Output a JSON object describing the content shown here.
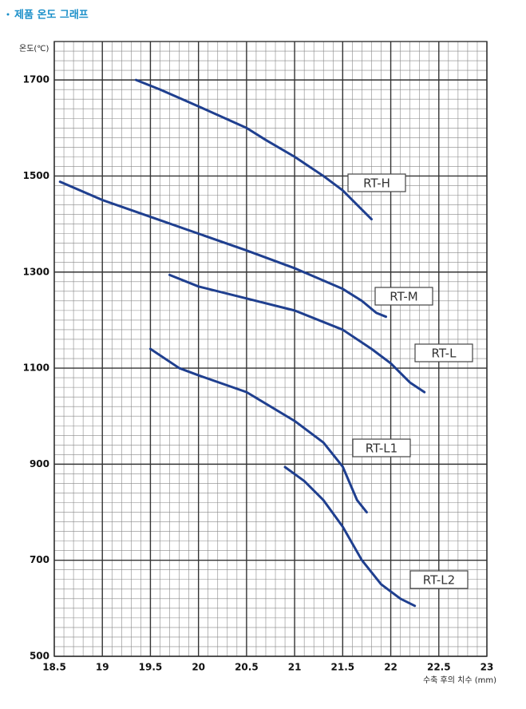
{
  "header": {
    "title": "제품 온도 그래프"
  },
  "chart_data": {
    "type": "line",
    "y_label": "온도(℃)",
    "x_label": "수축 후의 치수 (mm)",
    "xlim": [
      18.5,
      23
    ],
    "xticks": [
      18.5,
      19,
      19.5,
      20,
      20.5,
      21,
      21.5,
      22,
      22.5,
      23
    ],
    "ylim": [
      500,
      1780
    ],
    "yticks": [
      500,
      700,
      900,
      1100,
      1300,
      1500,
      1700
    ],
    "grid": true,
    "series": [
      {
        "name": "RT-H",
        "color": "#1f3f8f",
        "x": [
          19.35,
          19.6,
          20,
          20.5,
          20.7,
          21,
          21.3,
          21.5,
          21.7,
          21.8
        ],
        "values": [
          1700,
          1680,
          1645,
          1600,
          1575,
          1540,
          1500,
          1470,
          1430,
          1410
        ]
      },
      {
        "name": "RT-M",
        "color": "#1f3f8f",
        "x": [
          18.56,
          19,
          19.5,
          20,
          20.5,
          21,
          21.5,
          21.7,
          21.85,
          21.95
        ],
        "values": [
          1488,
          1450,
          1415,
          1380,
          1345,
          1308,
          1265,
          1240,
          1215,
          1207
        ]
      },
      {
        "name": "RT-L",
        "color": "#1f3f8f",
        "x": [
          19.7,
          20,
          20.5,
          21,
          21.5,
          21.8,
          22,
          22.2,
          22.35
        ],
        "values": [
          1294,
          1270,
          1245,
          1220,
          1180,
          1140,
          1110,
          1070,
          1050
        ]
      },
      {
        "name": "RT-L1",
        "color": "#1f3f8f",
        "x": [
          19.5,
          19.8,
          20,
          20.5,
          21,
          21.3,
          21.5,
          21.65,
          21.75
        ],
        "values": [
          1140,
          1100,
          1085,
          1050,
          990,
          945,
          895,
          825,
          800
        ]
      },
      {
        "name": "RT-L2",
        "color": "#1f3f8f",
        "x": [
          20.9,
          21.1,
          21.3,
          21.5,
          21.7,
          21.9,
          22.1,
          22.25
        ],
        "values": [
          894,
          865,
          825,
          770,
          700,
          650,
          620,
          605
        ]
      }
    ]
  }
}
